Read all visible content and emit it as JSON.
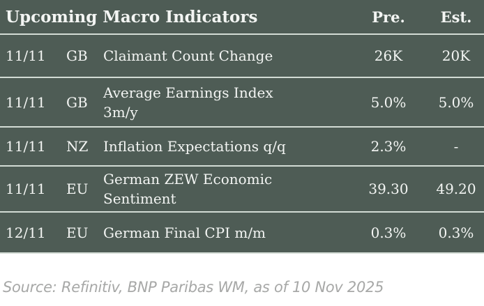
{
  "table": {
    "title": "Upcoming Macro Indicators",
    "columns": {
      "pre": "Pre.",
      "est": "Est."
    },
    "rows": [
      {
        "date": "11/11",
        "country": "GB",
        "indicator": "Claimant Count Change",
        "pre": "26K",
        "est": "20K"
      },
      {
        "date": "11/11",
        "country": "GB",
        "indicator": "Average Earnings Index\n3m/y",
        "pre": "5.0%",
        "est": "5.0%"
      },
      {
        "date": "11/11",
        "country": "NZ",
        "indicator": "Inflation Expectations q/q",
        "pre": "2.3%",
        "est": "-"
      },
      {
        "date": "11/11",
        "country": "EU",
        "indicator": "German ZEW Economic\nSentiment",
        "pre": "39.30",
        "est": "49.20"
      },
      {
        "date": "12/11",
        "country": "EU",
        "indicator": "German Final CPI m/m",
        "pre": "0.3%",
        "est": "0.3%"
      }
    ]
  },
  "source": "Source: Refinitiv, BNP Paribas WM, as of 10 Nov 2025",
  "colors": {
    "table_bg": "#4e5c55",
    "divider": "#d3dcd5",
    "text": "#f3f5f3",
    "source_text": "#a7a8a7"
  }
}
